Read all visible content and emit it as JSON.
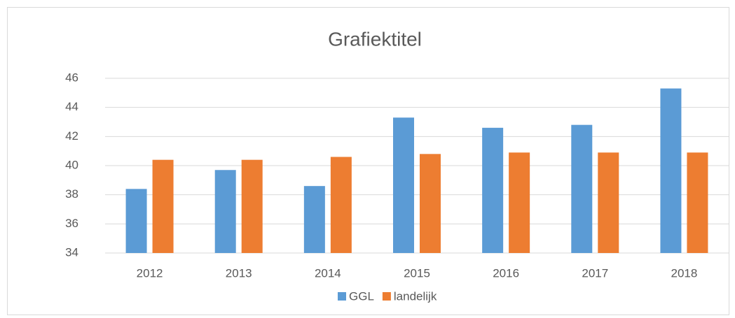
{
  "chart_data": {
    "type": "bar",
    "title": "Grafiektitel",
    "categories": [
      "2012",
      "2013",
      "2014",
      "2015",
      "2016",
      "2017",
      "2018"
    ],
    "series": [
      {
        "name": "GGL",
        "color": "#5b9bd5",
        "values": [
          38.4,
          39.7,
          38.6,
          43.3,
          42.6,
          42.8,
          45.3
        ]
      },
      {
        "name": "landelijk",
        "color": "#ed7d31",
        "values": [
          40.4,
          40.4,
          40.6,
          40.8,
          40.9,
          40.9,
          40.9
        ]
      }
    ],
    "ylim": [
      34,
      46
    ],
    "yticks": [
      34,
      36,
      38,
      40,
      42,
      44,
      46
    ],
    "grid": true,
    "legend": "bottom"
  }
}
